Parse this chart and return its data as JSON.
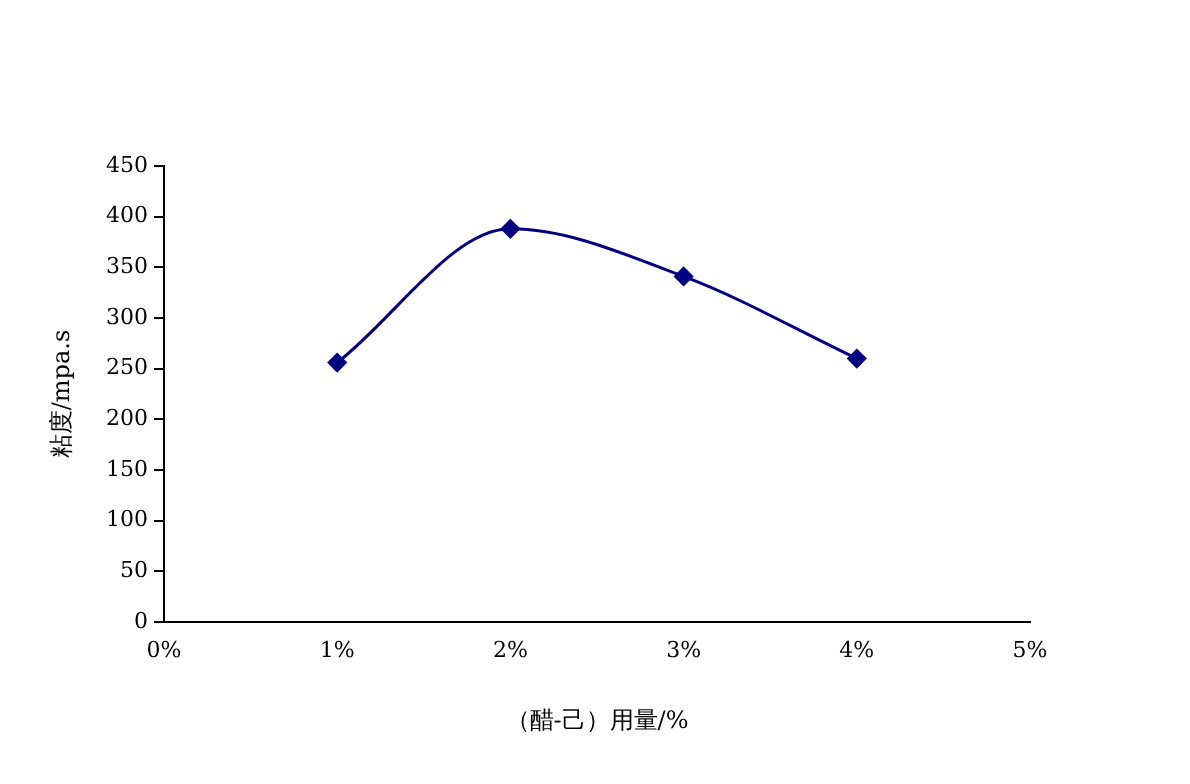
{
  "chart_data": {
    "type": "line",
    "xlabel": "（醋-己）用量/%",
    "ylabel": "粘度/mpa.s",
    "x": [
      1,
      2,
      3,
      4
    ],
    "series": [
      {
        "color": "#000080",
        "values": [
          256,
          388,
          341,
          260
        ]
      }
    ],
    "xlim": [
      0,
      5
    ],
    "xticks": [
      {
        "value": 0,
        "label": "0%"
      },
      {
        "value": 1,
        "label": "1%"
      },
      {
        "value": 2,
        "label": "2%"
      },
      {
        "value": 3,
        "label": "3%"
      },
      {
        "value": 4,
        "label": "4%"
      },
      {
        "value": 5,
        "label": "5%"
      }
    ],
    "ylim": [
      0,
      450
    ],
    "yticks": [
      0,
      50,
      100,
      150,
      200,
      250,
      300,
      350,
      400,
      450
    ],
    "grid": false,
    "legend": false,
    "marker": "diamond",
    "line_style": "solid"
  }
}
